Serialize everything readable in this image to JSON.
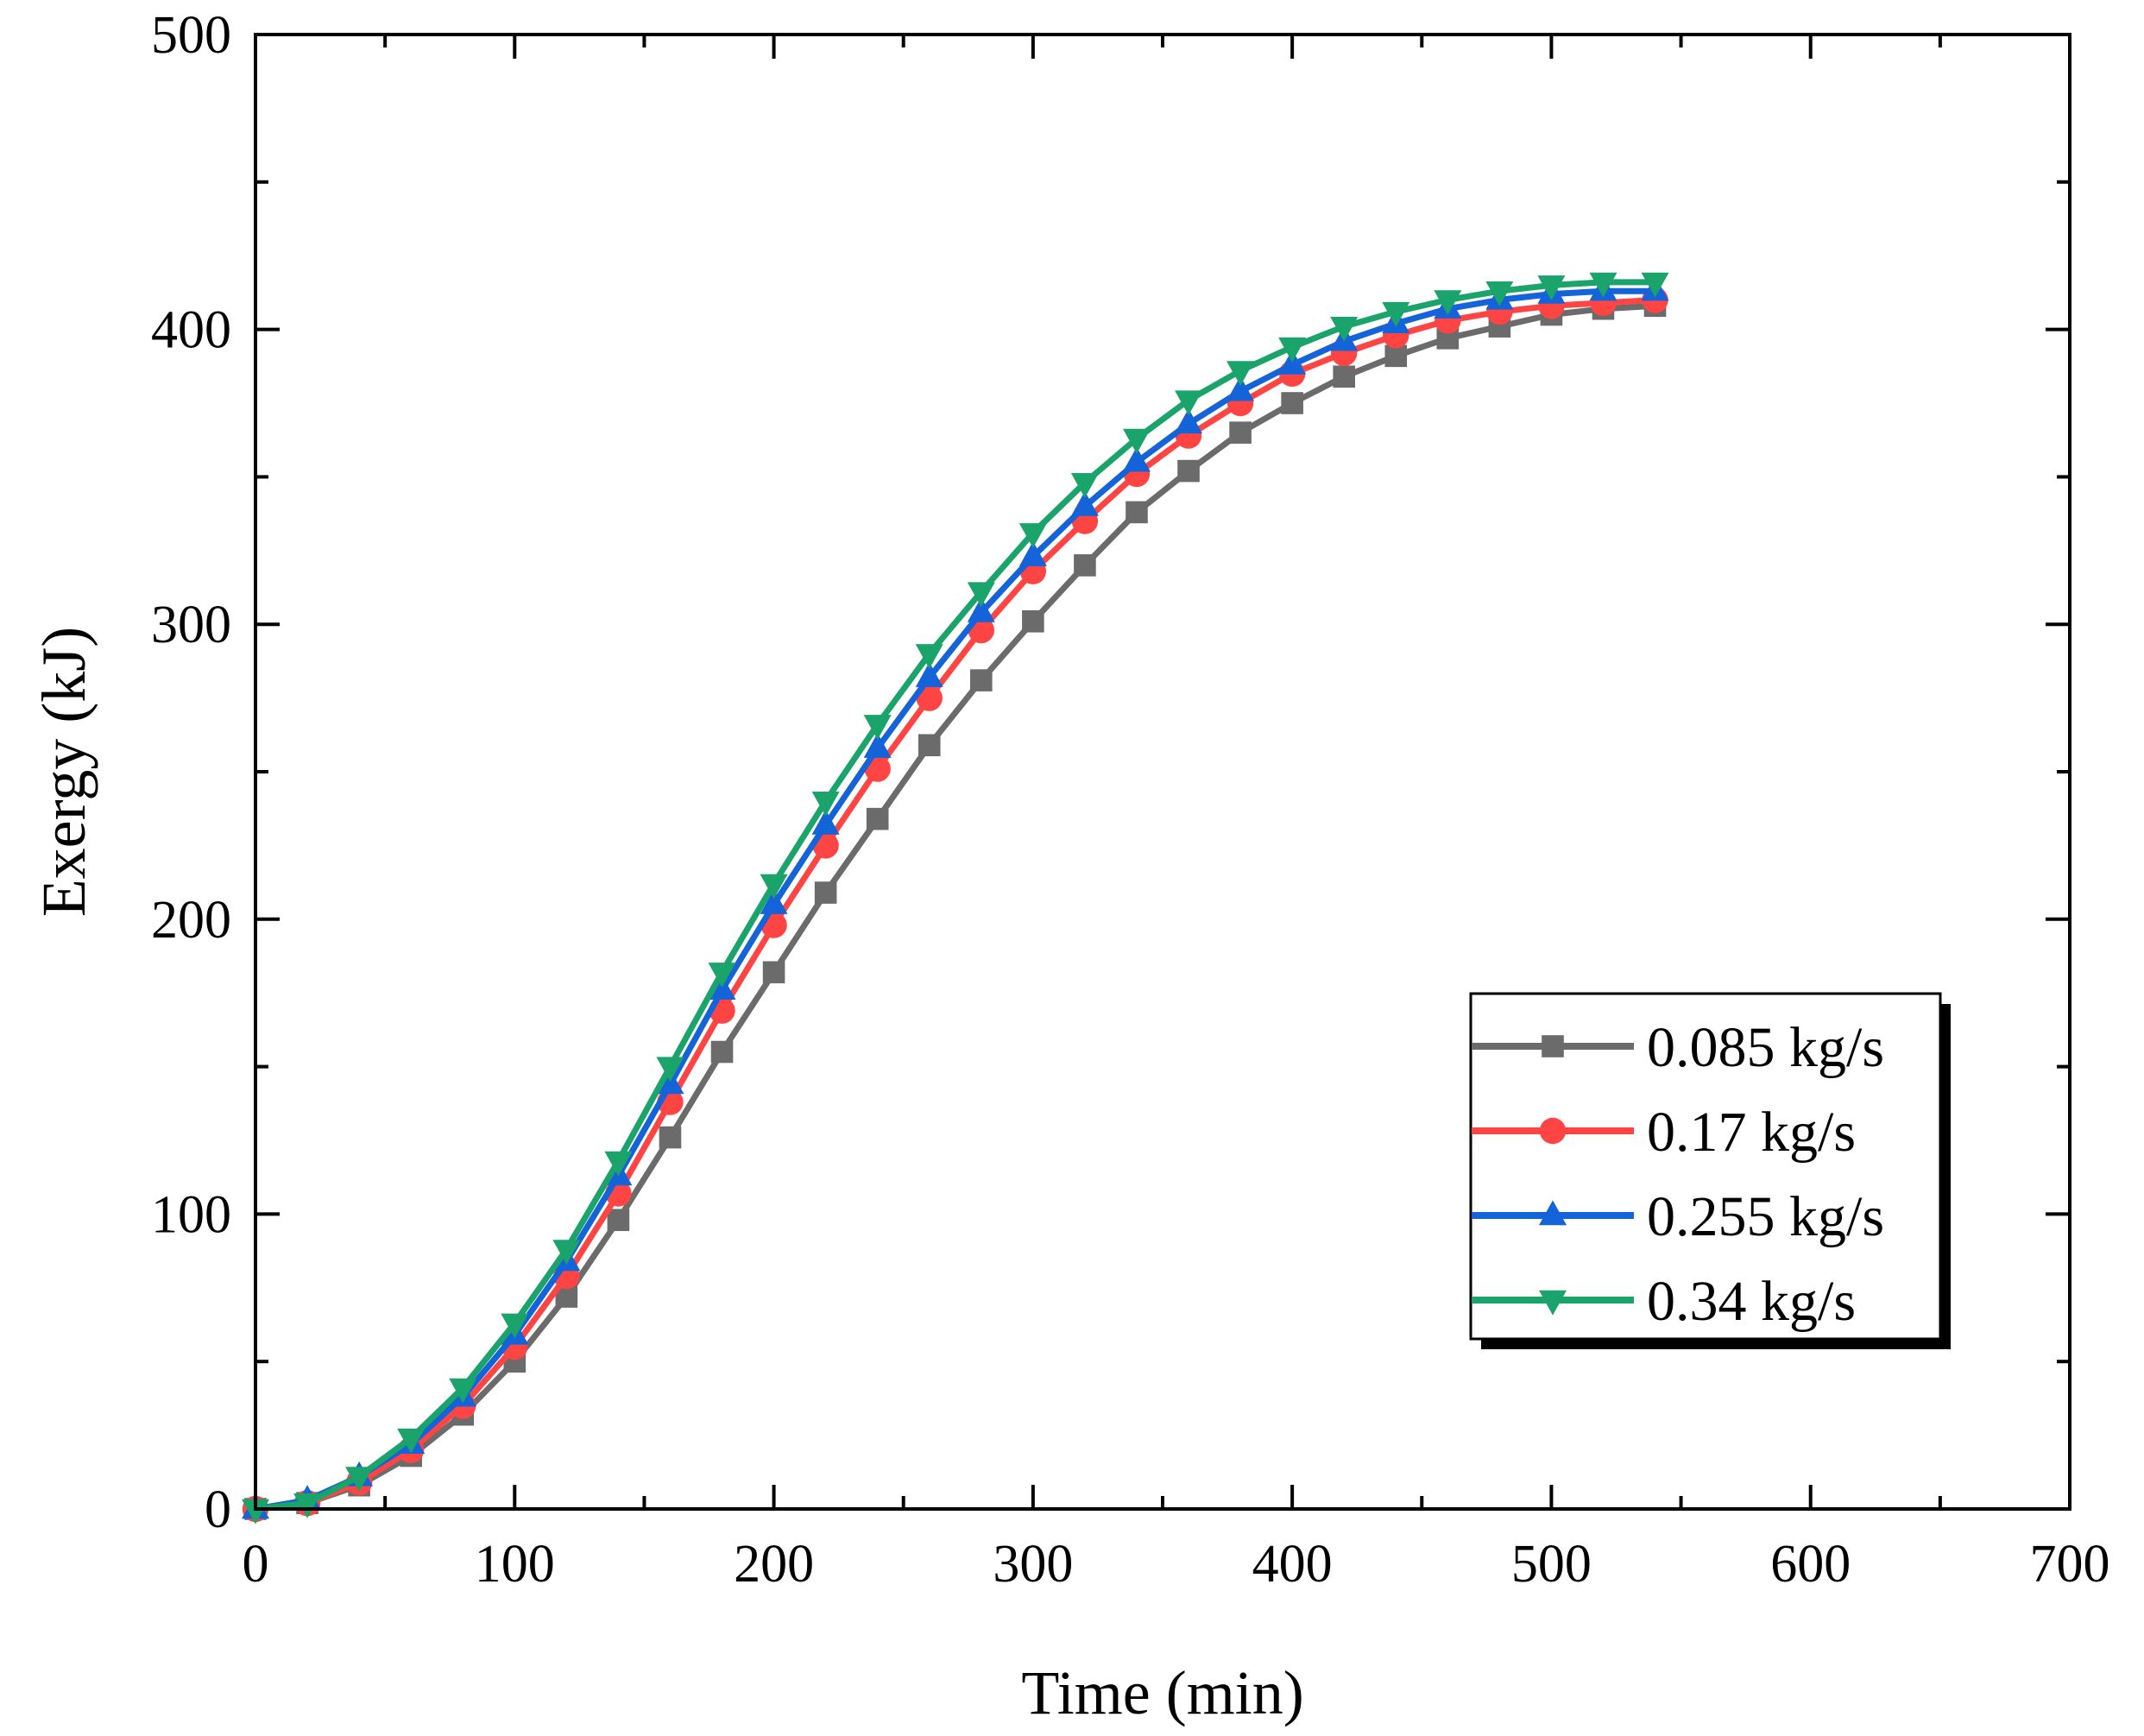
{
  "chart_data": {
    "type": "line",
    "xlabel": "Time (min)",
    "ylabel": "Exergy (kJ)",
    "xlim": [
      0,
      700
    ],
    "ylim": [
      0,
      500
    ],
    "x_ticks": [
      0,
      100,
      200,
      300,
      400,
      500,
      600,
      700
    ],
    "y_ticks": [
      0,
      100,
      200,
      300,
      400,
      500
    ],
    "grid": false,
    "legend_position": "bottom-right",
    "x": [
      0,
      20,
      40,
      60,
      80,
      100,
      120,
      140,
      160,
      180,
      200,
      220,
      240,
      260,
      280,
      300,
      320,
      340,
      360,
      380,
      400,
      420,
      440,
      460,
      480,
      500,
      520,
      540
    ],
    "series": [
      {
        "name": "0.085 kg/s",
        "color": "#6b6b6b",
        "marker": "square",
        "values": [
          0,
          2,
          8,
          18,
          32,
          50,
          72,
          98,
          126,
          155,
          182,
          209,
          234,
          259,
          281,
          301,
          320,
          338,
          352,
          365,
          375,
          384,
          391,
          397,
          401,
          405,
          407,
          408
        ]
      },
      {
        "name": "0.17 kg/s",
        "color": "#ff4444",
        "marker": "circle",
        "values": [
          0,
          2,
          9,
          20,
          35,
          55,
          79,
          107,
          138,
          169,
          198,
          225,
          251,
          275,
          298,
          318,
          335,
          351,
          364,
          375,
          385,
          392,
          398,
          403,
          406,
          408,
          409,
          410
        ]
      },
      {
        "name": "0.255 kg/s",
        "color": "#1463d8",
        "marker": "triangle-up",
        "values": [
          0,
          3,
          11,
          22,
          38,
          59,
          84,
          113,
          144,
          176,
          205,
          232,
          258,
          282,
          304,
          323,
          340,
          355,
          368,
          379,
          388,
          396,
          402,
          407,
          410,
          412,
          413,
          413
        ]
      },
      {
        "name": "0.34 kg/s",
        "color": "#1aa36a",
        "marker": "triangle-down",
        "values": [
          0,
          2,
          11,
          24,
          41,
          63,
          88,
          118,
          150,
          182,
          212,
          240,
          266,
          290,
          311,
          331,
          348,
          363,
          376,
          386,
          394,
          401,
          406,
          410,
          413,
          415,
          416,
          416
        ]
      }
    ]
  }
}
